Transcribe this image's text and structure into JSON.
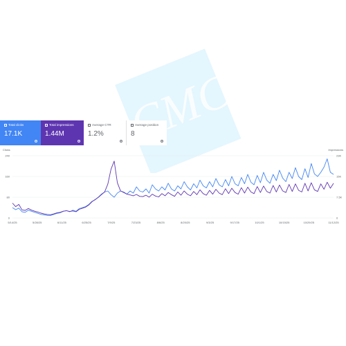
{
  "cards": [
    {
      "label": "Total clicks",
      "value": "17.1K",
      "checked": true
    },
    {
      "label": "Total impressions",
      "value": "1.44M",
      "checked": true
    },
    {
      "label": "Average CTR",
      "value": "1.2%",
      "checked": false
    },
    {
      "label": "Average position",
      "value": "8",
      "checked": false
    }
  ],
  "watermark": {
    "text": "CMC"
  },
  "colors": {
    "clicks": "#4285f4",
    "impressions": "#5e35b1",
    "grid": "#e8eaed",
    "watermark": "#b3e5fc"
  },
  "chart_data": {
    "type": "line",
    "x_ticks": [
      "5/14/25",
      "5/28/25",
      "6/11/25",
      "6/25/25",
      "7/9/25",
      "7/23/25",
      "8/6/25",
      "8/20/25",
      "9/3/25",
      "9/17/25",
      "10/1/25",
      "10/15/25",
      "10/29/25",
      "11/12/25"
    ],
    "left_axis": {
      "label": "Clicks",
      "ticks": [
        "240",
        "160",
        "80",
        "0"
      ],
      "ylim": [
        0,
        240
      ]
    },
    "right_axis": {
      "label": "Impressions",
      "ticks": [
        "23K",
        "15K",
        "7.5K",
        "0"
      ],
      "ylim": [
        0,
        23000
      ]
    },
    "series": [
      {
        "name": "Clicks",
        "axis": "left",
        "values": [
          40,
          32,
          38,
          24,
          22,
          30,
          26,
          22,
          18,
          14,
          12,
          10,
          10,
          14,
          18,
          20,
          26,
          28,
          24,
          30,
          26,
          36,
          40,
          44,
          52,
          64,
          70,
          80,
          92,
          100,
          104,
          90,
          80,
          96,
          104,
          100,
          92,
          104,
          96,
          120,
          104,
          100,
          112,
          96,
          128,
          112,
          104,
          120,
          108,
          134,
          112,
          104,
          124,
          112,
          140,
          120,
          108,
          132,
          116,
          146,
          124,
          116,
          140,
          120,
          152,
          128,
          120,
          148,
          124,
          160,
          132,
          124,
          156,
          132,
          168,
          138,
          128,
          164,
          136,
          176,
          146,
          134,
          168,
          144,
          184,
          154,
          140,
          176,
          152,
          194,
          160,
          148,
          190,
          156,
          210,
          170,
          160,
          176,
          196,
          228,
          176,
          168
        ]
      },
      {
        "name": "Impressions",
        "axis": "right",
        "values": [
          5500,
          4200,
          5000,
          3000,
          2800,
          3500,
          2900,
          2500,
          2200,
          1800,
          1500,
          1300,
          1200,
          1500,
          1900,
          2100,
          2500,
          2700,
          2400,
          2600,
          2300,
          3200,
          3600,
          4000,
          4800,
          6000,
          6800,
          7600,
          8600,
          9600,
          12500,
          18000,
          21000,
          13000,
          10000,
          9400,
          8800,
          8500,
          8200,
          8700,
          8000,
          7900,
          8400,
          7700,
          8800,
          8100,
          7800,
          9000,
          8200,
          9400,
          8600,
          8000,
          9600,
          8400,
          10000,
          8800,
          8200,
          9800,
          8600,
          10400,
          9000,
          8400,
          10200,
          8800,
          10600,
          9200,
          8600,
          10800,
          9000,
          11000,
          9400,
          8800,
          11200,
          9200,
          11400,
          9600,
          9000,
          11600,
          9400,
          11800,
          9800,
          9200,
          12000,
          9600,
          12200,
          10000,
          9400,
          12400,
          9800,
          12600,
          10200,
          9600,
          12800,
          10000,
          13000,
          10400,
          9800,
          12600,
          10600,
          13200,
          11000,
          12800
        ]
      }
    ],
    "grid": true,
    "legend": "none"
  }
}
